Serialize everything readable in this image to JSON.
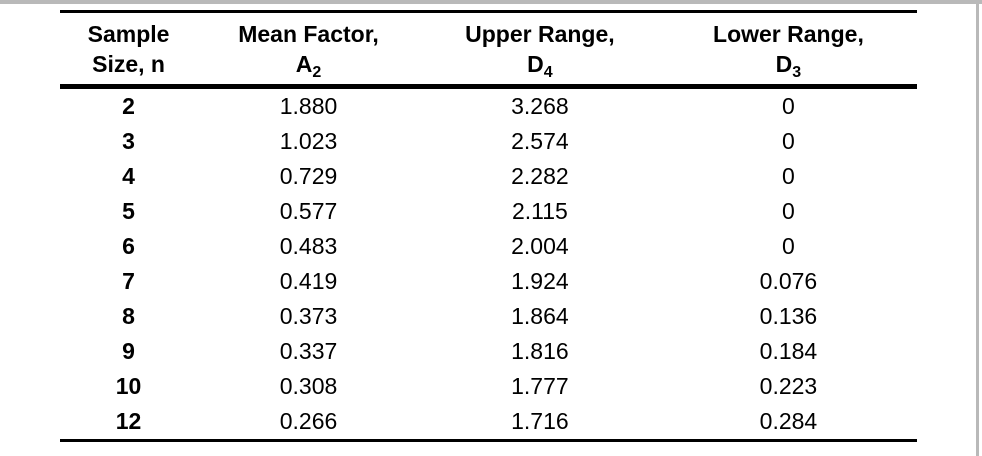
{
  "chart_data": {
    "type": "table",
    "columns": [
      {
        "line1": "Sample",
        "line2": "Size, n"
      },
      {
        "line1": "Mean Factor,",
        "symbol": "A",
        "sub": "2"
      },
      {
        "line1": "Upper Range,",
        "symbol": "D",
        "sub": "4"
      },
      {
        "line1": "Lower Range,",
        "symbol": "D",
        "sub": "3"
      }
    ],
    "rows": [
      {
        "n": "2",
        "a2": "1.880",
        "d4": "3.268",
        "d3": "0"
      },
      {
        "n": "3",
        "a2": "1.023",
        "d4": "2.574",
        "d3": "0"
      },
      {
        "n": "4",
        "a2": "0.729",
        "d4": "2.282",
        "d3": "0"
      },
      {
        "n": "5",
        "a2": "0.577",
        "d4": "2.115",
        "d3": "0"
      },
      {
        "n": "6",
        "a2": "0.483",
        "d4": "2.004",
        "d3": "0"
      },
      {
        "n": "7",
        "a2": "0.419",
        "d4": "1.924",
        "d3": "0.076"
      },
      {
        "n": "8",
        "a2": "0.373",
        "d4": "1.864",
        "d3": "0.136"
      },
      {
        "n": "9",
        "a2": "0.337",
        "d4": "1.816",
        "d3": "0.184"
      },
      {
        "n": "10",
        "a2": "0.308",
        "d4": "1.777",
        "d3": "0.223"
      },
      {
        "n": "12",
        "a2": "0.266",
        "d4": "1.716",
        "d3": "0.284"
      }
    ],
    "layout": {
      "grid": "horizontal-rules-only",
      "rule_positions": "top, below-header, bottom"
    }
  },
  "colors": {
    "background": "#ffffff",
    "text": "#000000",
    "rules": "#000000",
    "frame_border": "#b9b9b9"
  }
}
